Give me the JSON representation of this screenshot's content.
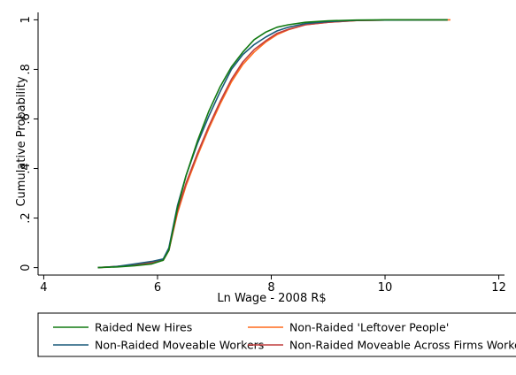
{
  "chart_data": {
    "type": "line",
    "xlabel": "Ln Wage - 2008 R$",
    "ylabel": "Cumulative Probability",
    "xlim": [
      3.9,
      12.1
    ],
    "ylim": [
      -0.03,
      1.03
    ],
    "xticks": [
      4,
      6,
      8,
      10,
      12
    ],
    "xtick_labels": [
      "4",
      "6",
      "8",
      "10",
      "12"
    ],
    "yticks": [
      0,
      0.2,
      0.4,
      0.6,
      0.8,
      1
    ],
    "ytick_labels": [
      "0",
      ".2",
      ".4",
      ".6",
      ".8",
      "1"
    ],
    "grid": false,
    "legend_position": "bottom",
    "series": [
      {
        "name": "Non-Raided 'Leftover People'",
        "color": "#ff6a1c",
        "x": [
          4.95,
          5.3,
          5.6,
          5.9,
          6.1,
          6.2,
          6.35,
          6.5,
          6.7,
          6.9,
          7.1,
          7.3,
          7.5,
          7.7,
          7.9,
          8.1,
          8.3,
          8.6,
          9.0,
          9.5,
          10.0,
          11.15
        ],
        "y": [
          0.0,
          0.005,
          0.01,
          0.02,
          0.03,
          0.07,
          0.22,
          0.33,
          0.45,
          0.56,
          0.66,
          0.75,
          0.82,
          0.87,
          0.91,
          0.94,
          0.96,
          0.98,
          0.99,
          0.997,
          0.999,
          1.0
        ]
      },
      {
        "name": "Non-Raided Moveable Across Firms Workers",
        "color": "#c03e3e",
        "x": [
          4.95,
          5.3,
          5.6,
          5.9,
          6.1,
          6.2,
          6.35,
          6.5,
          6.7,
          6.9,
          7.1,
          7.3,
          7.5,
          7.7,
          7.9,
          8.1,
          8.3,
          8.6,
          9.0,
          9.5,
          10.0,
          11.1
        ],
        "y": [
          0.0,
          0.005,
          0.01,
          0.02,
          0.03,
          0.07,
          0.23,
          0.34,
          0.46,
          0.57,
          0.67,
          0.76,
          0.83,
          0.88,
          0.915,
          0.945,
          0.962,
          0.98,
          0.99,
          0.997,
          0.999,
          1.0
        ]
      },
      {
        "name": "Non-Raided Moveable Workers",
        "color": "#1a5a7a",
        "x": [
          4.95,
          5.3,
          5.6,
          5.9,
          6.1,
          6.2,
          6.35,
          6.5,
          6.7,
          6.9,
          7.1,
          7.3,
          7.5,
          7.7,
          7.9,
          8.1,
          8.3,
          8.6,
          9.0,
          9.5,
          10.0,
          11.1
        ],
        "y": [
          0.0,
          0.005,
          0.015,
          0.025,
          0.035,
          0.08,
          0.25,
          0.37,
          0.5,
          0.61,
          0.71,
          0.8,
          0.86,
          0.9,
          0.93,
          0.955,
          0.97,
          0.985,
          0.993,
          0.998,
          0.999,
          1.0
        ]
      },
      {
        "name": "Raided New Hires",
        "color": "#127a12",
        "x": [
          4.95,
          5.3,
          5.6,
          5.9,
          6.1,
          6.2,
          6.35,
          6.5,
          6.7,
          6.9,
          7.1,
          7.3,
          7.5,
          7.7,
          7.9,
          8.1,
          8.3,
          8.6,
          9.0,
          9.5,
          10.0,
          11.1
        ],
        "y": [
          0.0,
          0.003,
          0.008,
          0.015,
          0.03,
          0.07,
          0.24,
          0.37,
          0.51,
          0.63,
          0.73,
          0.81,
          0.87,
          0.92,
          0.95,
          0.97,
          0.98,
          0.99,
          0.996,
          0.999,
          1.0,
          1.0
        ]
      }
    ],
    "legend": [
      {
        "name": "Raided New Hires",
        "color": "#127a12"
      },
      {
        "name": "Non-Raided 'Leftover People'",
        "color": "#ff6a1c"
      },
      {
        "name": "Non-Raided Moveable Workers",
        "color": "#1a5a7a"
      },
      {
        "name": "Non-Raided Moveable Across Firms Workers",
        "color": "#c03e3e"
      }
    ]
  }
}
